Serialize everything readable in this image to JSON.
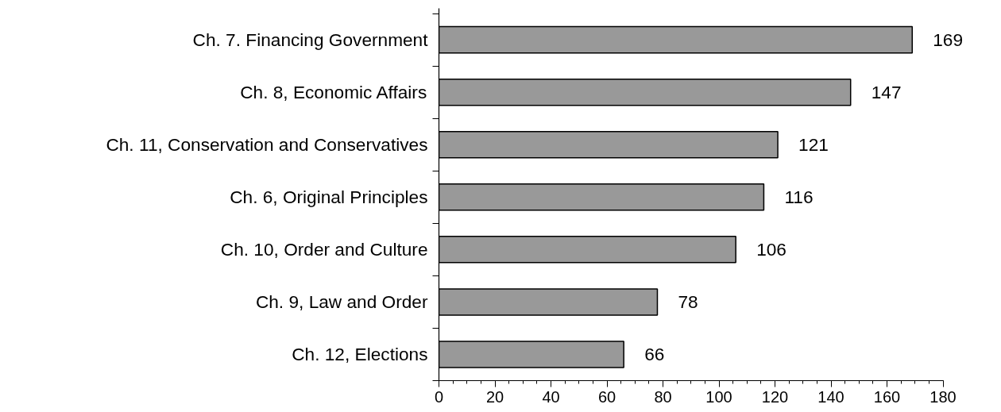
{
  "chart_data": {
    "type": "bar",
    "orientation": "horizontal",
    "categories": [
      "Ch. 7. Financing Government",
      "Ch. 8, Economic Affairs",
      "Ch. 11, Conservation and Conservatives",
      "Ch. 6, Original Principles",
      "Ch. 10, Order and Culture",
      "Ch. 9, Law and Order",
      "Ch. 12, Elections"
    ],
    "values": [
      169,
      147,
      121,
      116,
      106,
      78,
      66
    ],
    "color": "#999999",
    "xlim": [
      0,
      180
    ],
    "xticks": [
      0,
      20,
      40,
      60,
      80,
      100,
      120,
      140,
      160,
      180
    ],
    "data_labels": true,
    "grid": false
  }
}
